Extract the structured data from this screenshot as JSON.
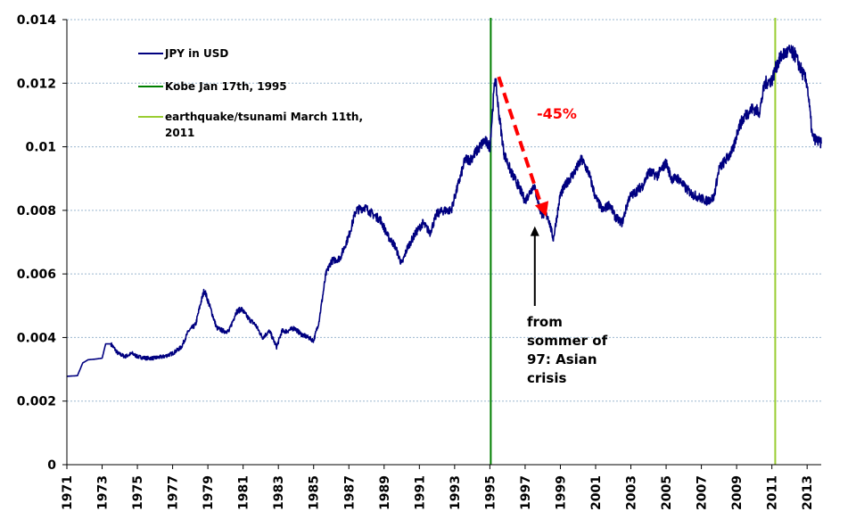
{
  "chart_data": {
    "type": "line",
    "title": "",
    "xlabel": "",
    "ylabel": "",
    "xlim": [
      1971,
      2013.8
    ],
    "ylim": [
      0,
      0.014
    ],
    "x_ticks": [
      "1971",
      "1973",
      "1975",
      "1977",
      "1979",
      "1981",
      "1983",
      "1985",
      "1987",
      "1989",
      "1991",
      "1993",
      "1995",
      "1997",
      "1999",
      "2001",
      "2003",
      "2005",
      "2007",
      "2009",
      "2011",
      "2013"
    ],
    "y_ticks": [
      "0",
      "0.002",
      "0.004",
      "0.006",
      "0.008",
      "0.01",
      "0.012",
      "0.014"
    ],
    "colors": {
      "series": "#000080",
      "kobe": "#008000",
      "tsunami": "#9acd32",
      "arrow": "#ff0000"
    },
    "series": [
      {
        "name": "JPY in USD",
        "x": [
          1971.0,
          1971.6,
          1971.9,
          1972.2,
          1972.6,
          1973.0,
          1973.2,
          1973.5,
          1973.9,
          1974.3,
          1974.7,
          1975.0,
          1975.5,
          1975.9,
          1976.5,
          1977.0,
          1977.5,
          1977.9,
          1978.3,
          1978.6,
          1978.8,
          1979.1,
          1979.5,
          1979.9,
          1980.2,
          1980.6,
          1980.9,
          1981.3,
          1981.7,
          1982.1,
          1982.5,
          1982.9,
          1983.2,
          1983.5,
          1983.9,
          1984.3,
          1984.7,
          1985.0,
          1985.3,
          1985.7,
          1986.0,
          1986.5,
          1987.0,
          1987.4,
          1987.9,
          1988.3,
          1988.8,
          1989.2,
          1989.6,
          1990.0,
          1990.3,
          1990.8,
          1991.2,
          1991.6,
          1992.0,
          1992.4,
          1992.8,
          1993.2,
          1993.6,
          1993.9,
          1994.3,
          1994.7,
          1995.0,
          1995.3,
          1995.5,
          1995.8,
          1996.2,
          1996.6,
          1997.0,
          1997.5,
          1997.9,
          1998.3,
          1998.6,
          1999.0,
          1999.4,
          1999.8,
          2000.2,
          2000.6,
          2001.0,
          2001.4,
          2001.8,
          2002.1,
          2002.5,
          2002.9,
          2003.3,
          2003.7,
          2004.0,
          2004.5,
          2005.0,
          2005.3,
          2005.7,
          2006.1,
          2006.5,
          2006.9,
          2007.3,
          2007.7,
          2008.0,
          2008.4,
          2008.8,
          2009.1,
          2009.5,
          2009.9,
          2010.3,
          2010.6,
          2011.0,
          2011.3,
          2011.6,
          2012.0,
          2012.3,
          2012.6,
          2013.0,
          2013.3,
          2013.8
        ],
        "values": [
          0.00278,
          0.0028,
          0.0032,
          0.0033,
          0.00332,
          0.00335,
          0.0038,
          0.0038,
          0.0035,
          0.0034,
          0.0035,
          0.0034,
          0.00335,
          0.00335,
          0.0034,
          0.0035,
          0.0037,
          0.0042,
          0.0044,
          0.0051,
          0.0055,
          0.005,
          0.0043,
          0.0042,
          0.0042,
          0.0048,
          0.0049,
          0.0046,
          0.0044,
          0.004,
          0.0042,
          0.0037,
          0.0042,
          0.0042,
          0.0043,
          0.0041,
          0.004,
          0.0039,
          0.0045,
          0.006,
          0.0064,
          0.0065,
          0.0072,
          0.008,
          0.0081,
          0.0079,
          0.0077,
          0.0072,
          0.0069,
          0.0063,
          0.0068,
          0.0073,
          0.0076,
          0.0073,
          0.0079,
          0.008,
          0.008,
          0.0088,
          0.0096,
          0.0096,
          0.0099,
          0.0102,
          0.01,
          0.0122,
          0.0111,
          0.0098,
          0.0092,
          0.0088,
          0.0083,
          0.0088,
          0.0079,
          0.0078,
          0.0071,
          0.0085,
          0.0089,
          0.0092,
          0.0096,
          0.0092,
          0.0084,
          0.008,
          0.0082,
          0.0078,
          0.0076,
          0.0084,
          0.0086,
          0.0088,
          0.0092,
          0.0091,
          0.0095,
          0.009,
          0.009,
          0.0087,
          0.0085,
          0.0084,
          0.0083,
          0.0084,
          0.0093,
          0.0096,
          0.0099,
          0.0106,
          0.011,
          0.0112,
          0.0111,
          0.012,
          0.0121,
          0.0126,
          0.0129,
          0.013,
          0.0129,
          0.0125,
          0.012,
          0.0103,
          0.0101
        ]
      }
    ],
    "vlines": [
      {
        "x": 1995.05,
        "label": "Kobe Jan 17th, 1995"
      },
      {
        "x": 2011.19,
        "label": "earthquake/tsunami March 11th, 2011"
      }
    ],
    "legend": {
      "placement": "top-left",
      "entries": [
        "JPY in USD",
        "Kobe Jan 17th, 1995",
        "earthquake/tsunami March 11th,",
        "2011"
      ]
    },
    "annotations": {
      "decline_label": "-45%",
      "decline_from": [
        1995.5,
        0.0122
      ],
      "decline_to": [
        1998.2,
        0.0078
      ],
      "asian_crisis_lines": [
        "from",
        "sommer of",
        "97: Asian",
        "crisis"
      ],
      "asian_crisis_pointer": [
        1997.55,
        0.0075
      ]
    }
  }
}
